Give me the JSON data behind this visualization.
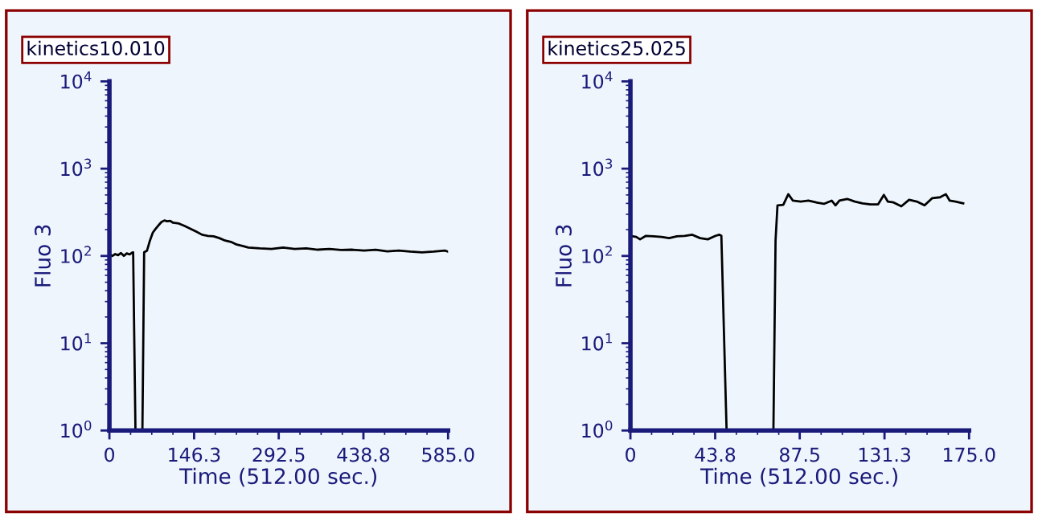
{
  "chart_data": [
    {
      "type": "line",
      "title": "kinetics10.010",
      "xlabel": "Time (512.00 sec.)",
      "ylabel": "Fluo 3",
      "log": "y",
      "grid": false,
      "marker": "none",
      "line_style": "solid",
      "xlim": [
        0,
        585
      ],
      "ylim": [
        1,
        10000
      ],
      "xticks": [
        0,
        146.3,
        292.5,
        438.8,
        {
          "value": 585,
          "label": "585.0"
        }
      ],
      "yticks": [
        {
          "value": 1,
          "label": "10$^{0}$"
        },
        {
          "value": 10,
          "label": "10$^{1}$"
        },
        {
          "value": 100,
          "label": "10$^{2}$"
        },
        {
          "value": 1000,
          "label": "10$^{3}$"
        },
        {
          "value": 10000,
          "label": "10$^{4}$"
        }
      ],
      "series": [
        {
          "color": "#000000",
          "x": [
            0,
            5,
            10,
            15,
            20,
            25,
            30,
            35,
            40,
            41,
            45,
            57,
            60,
            65,
            70,
            75,
            80,
            85,
            90,
            95,
            100,
            105,
            110,
            120,
            130,
            140,
            150,
            160,
            170,
            180,
            190,
            200,
            210,
            220,
            230,
            240,
            260,
            280,
            300,
            320,
            340,
            360,
            380,
            400,
            420,
            440,
            460,
            480,
            500,
            520,
            540,
            560,
            580,
            585
          ],
          "values": [
            105,
            100,
            105,
            102,
            108,
            100,
            107,
            104,
            110,
            110,
            1,
            1,
            110,
            115,
            150,
            185,
            205,
            225,
            245,
            255,
            250,
            252,
            240,
            235,
            220,
            205,
            190,
            175,
            170,
            168,
            160,
            150,
            145,
            135,
            130,
            125,
            122,
            120,
            125,
            120,
            122,
            118,
            120,
            117,
            118,
            115,
            118,
            113,
            115,
            112,
            110,
            112,
            115,
            112
          ]
        }
      ]
    },
    {
      "type": "line",
      "title": "kinetics25.025",
      "xlabel": "Time (512.00 sec.)",
      "ylabel": "Fluo 3",
      "log": "y",
      "grid": false,
      "marker": "none",
      "line_style": "solid",
      "xlim": [
        0,
        175
      ],
      "ylim": [
        1,
        10000
      ],
      "xticks": [
        0,
        43.8,
        87.5,
        131.3,
        {
          "value": 175,
          "label": "175.0"
        }
      ],
      "yticks": [
        {
          "value": 1,
          "label": "10$^{0}$"
        },
        {
          "value": 10,
          "label": "10$^{1}$"
        },
        {
          "value": 100,
          "label": "10$^{2}$"
        },
        {
          "value": 1000,
          "label": "10$^{3}$"
        },
        {
          "value": 10000,
          "label": "10$^{4}$"
        }
      ],
      "series": [
        {
          "color": "#000000",
          "x": [
            0,
            3,
            5,
            8,
            12,
            16,
            20,
            24,
            28,
            32,
            36,
            40,
            44,
            46,
            47,
            49.7,
            73.9,
            75,
            76,
            79,
            81.6,
            84,
            88,
            92,
            96,
            100,
            104,
            106,
            108,
            112,
            116,
            120,
            124,
            128,
            131,
            133,
            136,
            140,
            144,
            148,
            152,
            156,
            160,
            163,
            165,
            168,
            172
          ],
          "values": [
            170,
            165,
            155,
            170,
            168,
            165,
            160,
            168,
            170,
            175,
            160,
            155,
            170,
            175,
            170,
            1,
            1,
            150,
            380,
            385,
            510,
            430,
            420,
            430,
            410,
            395,
            430,
            380,
            430,
            450,
            420,
            400,
            390,
            390,
            500,
            420,
            410,
            370,
            440,
            420,
            380,
            460,
            470,
            510,
            430,
            420,
            400
          ]
        }
      ]
    }
  ]
}
